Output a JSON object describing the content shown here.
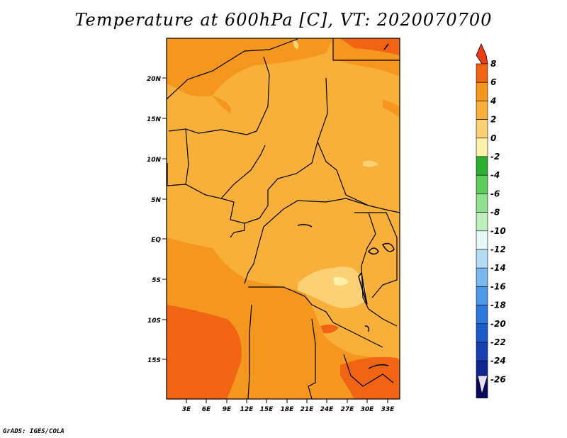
{
  "title": "Temperature at 600hPa [C], VT: 2020070700",
  "credit": "GrADS: IGES/COLA",
  "map": {
    "lat_labels": [
      "20N",
      "15N",
      "10N",
      "5N",
      "EQ",
      "5S",
      "10S",
      "15S"
    ],
    "lon_labels": [
      "3E",
      "6E",
      "9E",
      "12E",
      "15E",
      "18E",
      "21E",
      "24E",
      "27E",
      "30E",
      "33E"
    ]
  },
  "colorbar": {
    "labels": [
      "8",
      "6",
      "4",
      "2",
      "0",
      "-2",
      "-4",
      "-6",
      "-8",
      "-10",
      "-12",
      "-14",
      "-16",
      "-18",
      "-20",
      "-22",
      "-24",
      "-26"
    ],
    "colors": [
      "#f03c14",
      "#f06414",
      "#f5961e",
      "#f8b03a",
      "#fcd074",
      "#fdf0a8",
      "#29b031",
      "#5cce5c",
      "#8fe08f",
      "#bfeebf",
      "#e8f8f8",
      "#b4dcf5",
      "#7ab8ee",
      "#4c98e6",
      "#2e78dc",
      "#1e5ac8",
      "#1840b0",
      "#102890",
      "#080a60",
      "#e6e0f8"
    ]
  }
}
